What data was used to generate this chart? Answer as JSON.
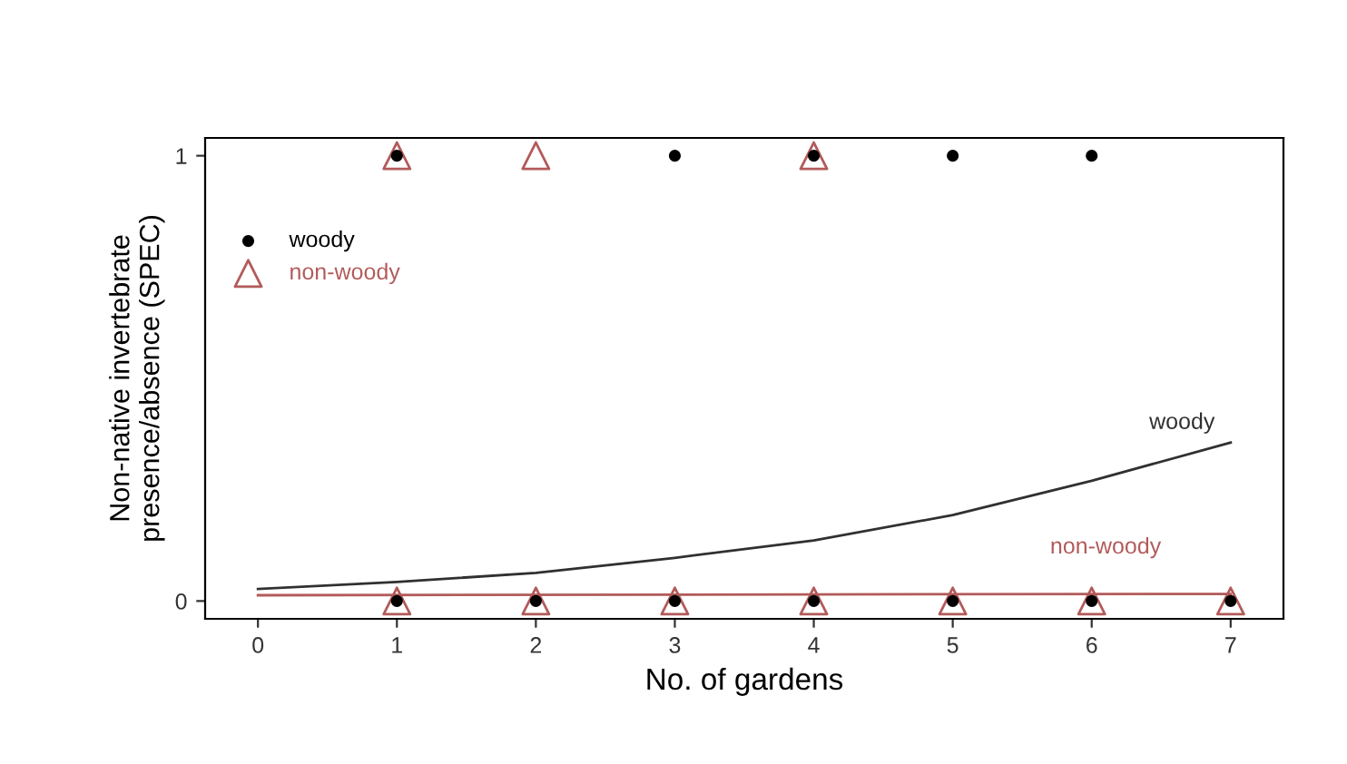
{
  "chart_data": {
    "type": "scatter",
    "xlabel": "No. of gardens",
    "ylabel": "Non-native invertebrate\npresence/absence (SPEC)",
    "xlim": [
      -0.38,
      7.38
    ],
    "ylim": [
      -0.04,
      1.04
    ],
    "xticks": [
      0,
      1,
      2,
      3,
      4,
      5,
      6,
      7
    ],
    "yticks": [
      0,
      1
    ],
    "grid": false,
    "legend": "top left",
    "series": [
      {
        "name": "woody",
        "marker": "circle",
        "color": "#000000",
        "x": [
          1,
          3,
          4,
          5,
          6,
          1,
          2,
          3,
          4,
          5,
          6,
          7
        ],
        "values": [
          1,
          1,
          1,
          1,
          1,
          0,
          0,
          0,
          0,
          0,
          0,
          0
        ]
      },
      {
        "name": "non-woody",
        "marker": "triangle",
        "color": "#b35a5a",
        "x": [
          1,
          2,
          4,
          1,
          2,
          3,
          4,
          5,
          6,
          7
        ],
        "values": [
          1,
          1,
          1,
          0,
          0,
          0,
          0,
          0,
          0,
          0
        ]
      },
      {
        "name": "woody",
        "type": "line",
        "color": "#303030",
        "x": [
          0,
          1,
          2,
          3,
          4,
          5,
          6,
          7
        ],
        "values": [
          0.027,
          0.043,
          0.063,
          0.097,
          0.136,
          0.193,
          0.27,
          0.356
        ]
      },
      {
        "name": "non-woody",
        "type": "line",
        "color": "#b35a5a",
        "x": [
          0,
          7
        ],
        "values": [
          0.013,
          0.016
        ]
      }
    ]
  }
}
